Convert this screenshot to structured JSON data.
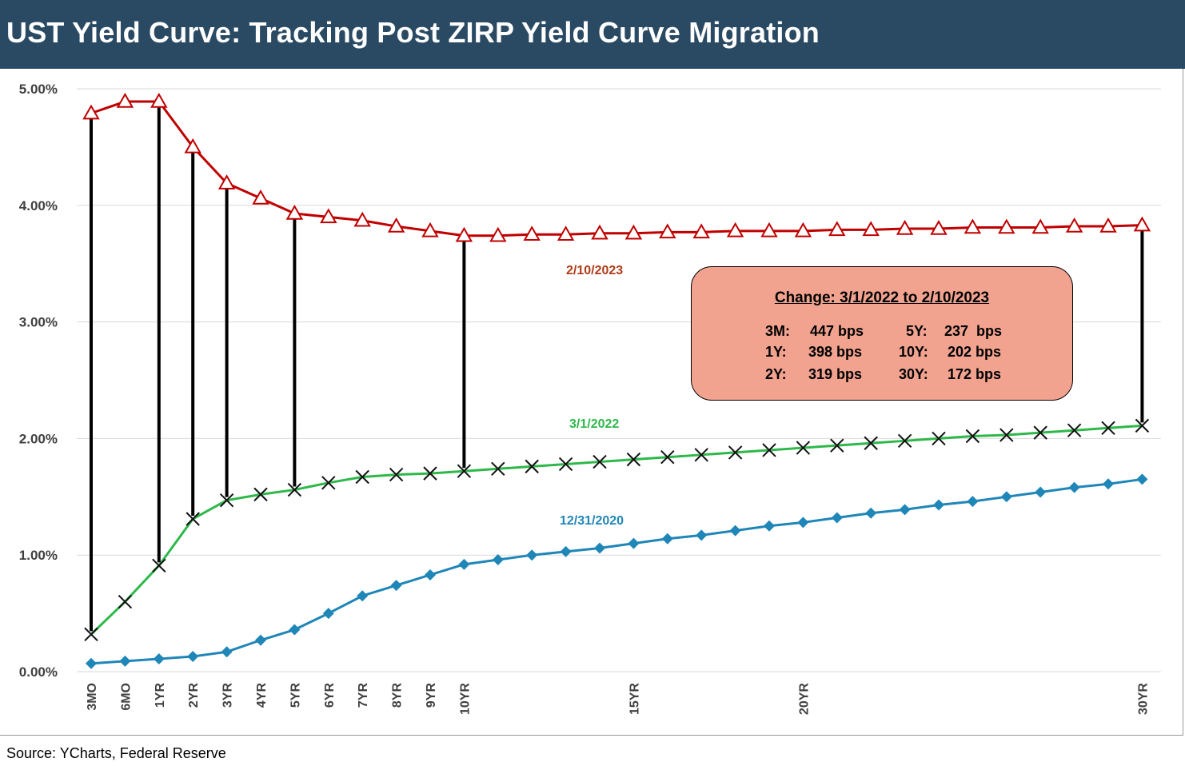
{
  "header": {
    "title": "UST Yield Curve: Tracking Post ZIRP Yield Curve Migration"
  },
  "footer": {
    "source": "Source: YCharts, Federal Reserve"
  },
  "colors": {
    "title_bg": "#2a4a63",
    "series_2023": "#c00000",
    "series_2022": "#2eb84a",
    "series_2020": "#1f86b8",
    "callout_bg": "#f2a38f",
    "change_lines": "#000000"
  },
  "callout": {
    "title": "Change: 3/1/2022 to 2/10/2023",
    "rows": [
      {
        "l_key": "3M:",
        "l_val": "447 bps",
        "r_key": "5Y:",
        "r_val": "237  bps"
      },
      {
        "l_key": "1Y:",
        "l_val": "398 bps",
        "r_key": "10Y:",
        "r_val": "202 bps"
      },
      {
        "l_key": "2Y:",
        "l_val": "319 bps",
        "r_key": "30Y:",
        "r_val": "172 bps"
      }
    ]
  },
  "chart_data": {
    "type": "line",
    "title": "UST Yield Curve: Tracking Post ZIRP Yield Curve Migration",
    "xlabel": "",
    "ylabel": "",
    "ylim": [
      0,
      5
    ],
    "y_ticks": [
      "0.00%",
      "1.00%",
      "2.00%",
      "3.00%",
      "4.00%",
      "5.00%"
    ],
    "grid": "horizontal",
    "x_tick_labels": [
      "3MO",
      "6MO",
      "1YR",
      "2YR",
      "3YR",
      "4YR",
      "5YR",
      "6YR",
      "7YR",
      "8YR",
      "9YR",
      "10YR",
      "15YR",
      "20YR",
      "30YR"
    ],
    "x_positions": [
      0,
      1,
      2,
      3,
      4,
      5,
      6,
      7,
      8,
      9,
      10,
      11,
      12,
      13,
      14,
      15,
      16,
      17,
      18,
      19,
      20,
      21,
      22,
      23,
      24,
      25,
      26,
      27,
      28,
      29,
      30,
      31
    ],
    "x_labels_at": {
      "3MO": 0,
      "6MO": 1,
      "1YR": 2,
      "2YR": 3,
      "3YR": 4,
      "4YR": 5,
      "5YR": 6,
      "6YR": 7,
      "7YR": 8,
      "8YR": 9,
      "9YR": 10,
      "10YR": 11,
      "15YR": 16,
      "20YR": 21,
      "30YR": 31
    },
    "series": [
      {
        "name": "2/10/2023",
        "marker": "triangle",
        "values": [
          4.79,
          4.89,
          4.89,
          4.5,
          4.19,
          4.06,
          3.93,
          3.9,
          3.87,
          3.82,
          3.78,
          3.74,
          3.74,
          3.75,
          3.75,
          3.76,
          3.76,
          3.77,
          3.77,
          3.78,
          3.78,
          3.78,
          3.79,
          3.79,
          3.8,
          3.8,
          3.81,
          3.81,
          3.81,
          3.82,
          3.82,
          3.83
        ]
      },
      {
        "name": "3/1/2022",
        "marker": "x",
        "values": [
          0.32,
          0.6,
          0.91,
          1.31,
          1.47,
          1.52,
          1.56,
          1.62,
          1.67,
          1.69,
          1.7,
          1.72,
          1.74,
          1.76,
          1.78,
          1.8,
          1.82,
          1.84,
          1.86,
          1.88,
          1.9,
          1.92,
          1.94,
          1.96,
          1.98,
          2.0,
          2.02,
          2.03,
          2.05,
          2.07,
          2.09,
          2.11
        ]
      },
      {
        "name": "12/31/2020",
        "marker": "diamond",
        "values": [
          0.07,
          0.09,
          0.11,
          0.13,
          0.17,
          0.27,
          0.36,
          0.5,
          0.65,
          0.74,
          0.83,
          0.92,
          0.96,
          1.0,
          1.03,
          1.06,
          1.1,
          1.14,
          1.17,
          1.21,
          1.25,
          1.28,
          1.32,
          1.36,
          1.39,
          1.43,
          1.46,
          1.5,
          1.54,
          1.58,
          1.61,
          1.65
        ]
      }
    ],
    "change_lines_from_to": {
      "from_series": "3/1/2022",
      "to_series": "2/10/2023",
      "at_x": [
        0,
        2,
        3,
        4,
        6,
        11,
        31
      ]
    },
    "annotations": [
      "2/10/2023",
      "3/1/2022",
      "12/31/2020"
    ]
  }
}
